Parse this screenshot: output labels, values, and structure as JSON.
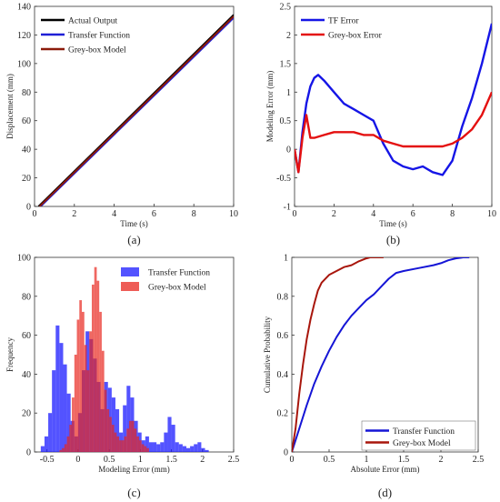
{
  "chart_data": [
    {
      "type": "line",
      "panel_label": "(a)",
      "xlabel": "Time (s)",
      "ylabel": "Displacement (mm)",
      "xlim": [
        0,
        10
      ],
      "ylim": [
        0,
        140
      ],
      "xticks": [
        0,
        2,
        4,
        6,
        8,
        10
      ],
      "yticks": [
        0,
        20,
        40,
        60,
        80,
        100,
        120,
        140
      ],
      "legend_position": "top-left",
      "series": [
        {
          "name": "Actual Output",
          "color": "#000000",
          "x": [
            0.2,
            10
          ],
          "y": [
            0,
            134
          ]
        },
        {
          "name": "Transfer Function",
          "color": "#1f1fd6",
          "x": [
            0.3,
            10
          ],
          "y": [
            0,
            132
          ]
        },
        {
          "name": "Grey-box Model",
          "color": "#8b1a0a",
          "x": [
            0.25,
            10
          ],
          "y": [
            0,
            133
          ]
        }
      ]
    },
    {
      "type": "line",
      "panel_label": "(b)",
      "xlabel": "Time (s)",
      "ylabel": "Modeling Error (mm)",
      "xlim": [
        0,
        10
      ],
      "ylim": [
        -1,
        2.5
      ],
      "xticks": [
        0,
        2,
        4,
        6,
        8,
        10
      ],
      "yticks": [
        -1,
        -0.5,
        0,
        0.5,
        1,
        1.5,
        2,
        2.5
      ],
      "legend_position": "top-left",
      "series": [
        {
          "name": "TF Error",
          "color": "#1515e6",
          "x": [
            0,
            0.2,
            0.4,
            0.6,
            0.8,
            1.0,
            1.2,
            1.5,
            2.0,
            2.5,
            3.0,
            3.5,
            4.0,
            4.5,
            5.0,
            5.5,
            6.0,
            6.5,
            7.0,
            7.5,
            8.0,
            8.5,
            9.0,
            9.5,
            10.0
          ],
          "y": [
            0,
            -0.4,
            0.3,
            0.8,
            1.1,
            1.25,
            1.3,
            1.2,
            1.0,
            0.8,
            0.7,
            0.6,
            0.5,
            0.1,
            -0.2,
            -0.3,
            -0.35,
            -0.3,
            -0.4,
            -0.45,
            -0.2,
            0.4,
            0.9,
            1.5,
            2.2
          ]
        },
        {
          "name": "Grey-box Error",
          "color": "#e41010",
          "x": [
            0,
            0.2,
            0.4,
            0.6,
            0.8,
            1.0,
            1.5,
            2.0,
            2.5,
            3.0,
            3.5,
            4.0,
            4.5,
            5.0,
            5.5,
            6.0,
            6.5,
            7.0,
            7.5,
            8.0,
            8.5,
            9.0,
            9.5,
            10.0
          ],
          "y": [
            0,
            -0.4,
            0.2,
            0.6,
            0.2,
            0.2,
            0.25,
            0.3,
            0.3,
            0.3,
            0.25,
            0.25,
            0.15,
            0.1,
            0.05,
            0.05,
            0.05,
            0.05,
            0.05,
            0.1,
            0.2,
            0.35,
            0.6,
            1.0
          ]
        }
      ]
    },
    {
      "type": "bar",
      "subtype": "histogram",
      "panel_label": "(c)",
      "xlabel": "Modeling Error (mm)",
      "ylabel": "Frequency",
      "xlim": [
        -0.7,
        2.5
      ],
      "ylim": [
        0,
        100
      ],
      "xticks": [
        -0.5,
        0,
        0.5,
        1,
        1.5,
        2,
        2.5
      ],
      "yticks": [
        0,
        20,
        40,
        60,
        80,
        100
      ],
      "legend_position": "top-right",
      "series": [
        {
          "name": "Transfer Function",
          "color": "#1a1aff",
          "bin_start": -0.6,
          "bin_width": 0.06,
          "values": [
            3,
            8,
            20,
            42,
            65,
            56,
            45,
            30,
            16,
            8,
            20,
            42,
            62,
            58,
            48,
            36,
            22,
            36,
            33,
            28,
            22,
            10,
            24,
            34,
            28,
            16,
            10,
            6,
            8,
            5,
            5,
            4,
            5,
            10,
            18,
            14,
            5,
            4,
            3,
            2,
            3,
            4,
            5,
            2,
            1
          ]
        },
        {
          "name": "Grey-box Model",
          "color": "#e8261e",
          "bin_start": -0.3,
          "bin_width": 0.04,
          "values": [
            1,
            2,
            4,
            8,
            14,
            28,
            50,
            68,
            78,
            72,
            55,
            42,
            62,
            86,
            95,
            88,
            72,
            52,
            32,
            22,
            18,
            14,
            10,
            8,
            6,
            6,
            8,
            12,
            16,
            16,
            12,
            8,
            6,
            4,
            3,
            2
          ]
        }
      ]
    },
    {
      "type": "line",
      "panel_label": "(d)",
      "xlabel": "Absolute Error (mm)",
      "ylabel": "Cumulative Probability",
      "xlim": [
        0,
        2.5
      ],
      "ylim": [
        0,
        1
      ],
      "xticks": [
        0,
        0.5,
        1,
        1.5,
        2,
        2.5
      ],
      "yticks": [
        0,
        0.2,
        0.4,
        0.6,
        0.8,
        1
      ],
      "legend_position": "bottom-right",
      "series": [
        {
          "name": "Transfer Function",
          "color": "#1515d6",
          "x": [
            0,
            0.1,
            0.2,
            0.3,
            0.4,
            0.5,
            0.6,
            0.7,
            0.8,
            0.9,
            1.0,
            1.1,
            1.2,
            1.3,
            1.4,
            1.5,
            1.7,
            1.9,
            2.0,
            2.1,
            2.2,
            2.3,
            2.35
          ],
          "y": [
            0,
            0.12,
            0.24,
            0.35,
            0.44,
            0.52,
            0.59,
            0.65,
            0.7,
            0.74,
            0.78,
            0.81,
            0.85,
            0.89,
            0.92,
            0.93,
            0.945,
            0.96,
            0.97,
            0.985,
            0.995,
            1.0,
            1.0
          ]
        },
        {
          "name": "Grey-box Model",
          "color": "#a8160c",
          "x": [
            0,
            0.05,
            0.1,
            0.15,
            0.2,
            0.25,
            0.3,
            0.35,
            0.4,
            0.5,
            0.6,
            0.7,
            0.8,
            0.9,
            1.0,
            1.05,
            1.1,
            1.2
          ],
          "y": [
            0,
            0.12,
            0.3,
            0.45,
            0.58,
            0.68,
            0.76,
            0.83,
            0.87,
            0.91,
            0.93,
            0.95,
            0.96,
            0.98,
            0.995,
            1.0,
            1.0,
            1.0
          ]
        }
      ]
    }
  ]
}
